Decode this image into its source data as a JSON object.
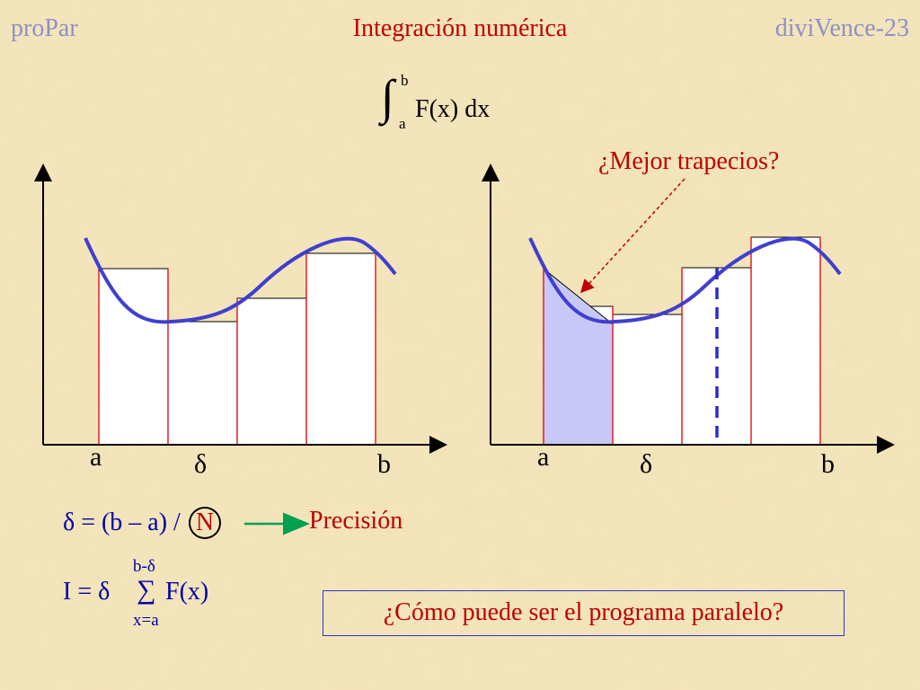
{
  "header": {
    "left": "proPar",
    "title": "Integración numérica",
    "right": "diviVence-23"
  },
  "integral": {
    "upper": "b",
    "lower": "a",
    "expression": "F(x) dx"
  },
  "left_diagram": {
    "label_a": "a",
    "label_delta": "δ",
    "label_b": "b"
  },
  "right_diagram": {
    "label_a": "a",
    "label_delta": "δ",
    "label_b": "b",
    "question": "¿Mejor trapecios?"
  },
  "formula": {
    "text": "δ = (b – a) /",
    "n": "N",
    "result": "Precisión"
  },
  "sum_formula": {
    "main": "I = δ",
    "upper": "b-δ",
    "lower": "x=a",
    "sigma": "∑",
    "term": "F(x)"
  },
  "parallel_question": "¿Cómo puede ser el programa paralelo?",
  "colors": {
    "background": "#f5e6bc",
    "header_side": "#8f8fc6",
    "accent_red": "#c00000",
    "curve_blue": "#3f3fd0",
    "trapezoid_fill": "#c8c8f8",
    "formula_blue": "#0000aa",
    "arrow_green": "#00a050"
  }
}
